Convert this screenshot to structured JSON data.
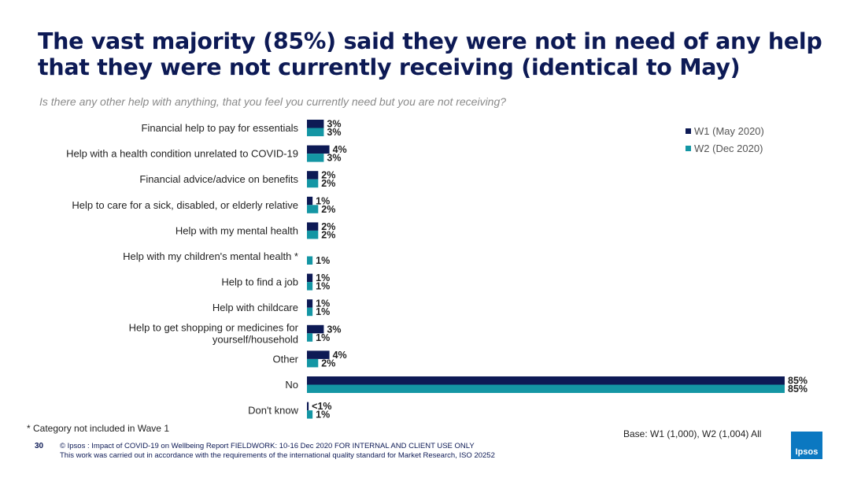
{
  "title": "The vast majority (85%) said they were not in need of any help that they were not currently receiving (identical to May)",
  "subtitle": "Is there any other help with anything, that you feel you currently need but you are not receiving?",
  "footnote": "* Category not included in Wave 1",
  "base": "Base: W1 (1,000), W2 (1,004) All",
  "footer": {
    "page_number": "30",
    "copyright_line1": "© Ipsos : Impact of COVID-19 on Wellbeing Report FIELDWORK: 10-16 Dec 2020 FOR INTERNAL AND CLIENT USE ONLY",
    "copyright_line2": "This work was carried out in accordance with the requirements of the international quality standard for Market Research, ISO 20252",
    "logo_text": "Ipsos"
  },
  "colors": {
    "w1": "#0d1a55",
    "w2": "#1496a4",
    "title": "#0d1a55",
    "logo": "#0b78c1"
  },
  "chart_data": {
    "type": "bar",
    "orientation": "horizontal",
    "categories": [
      [
        "Financial help to pay for essentials"
      ],
      [
        "Help with a health condition unrelated to COVID-19"
      ],
      [
        "Financial advice/advice on benefits"
      ],
      [
        "Help to care for a sick, disabled, or elderly relative"
      ],
      [
        "Help with my mental health"
      ],
      [
        "Help with my children's mental health *"
      ],
      [
        "Help to find a job"
      ],
      [
        "Help with childcare"
      ],
      [
        "Help to get shopping or medicines for",
        "yourself/household"
      ],
      [
        "Other"
      ],
      [
        "No"
      ],
      [
        "Don't know"
      ]
    ],
    "series": [
      {
        "name": "W1 (May 2020)",
        "values": [
          3,
          4,
          2,
          1,
          2,
          null,
          1,
          1,
          3,
          4,
          85,
          0.3
        ],
        "labels": [
          "3%",
          "4%",
          "2%",
          "1%",
          "2%",
          "",
          "1%",
          "1%",
          "3%",
          "4%",
          "85%",
          "<1%"
        ]
      },
      {
        "name": "W2 (Dec 2020)",
        "values": [
          3,
          3,
          2,
          2,
          2,
          1,
          1,
          1,
          1,
          2,
          85,
          1
        ],
        "labels": [
          "3%",
          "3%",
          "2%",
          "2%",
          "2%",
          "1%",
          "1%",
          "1%",
          "1%",
          "2%",
          "85%",
          "1%"
        ]
      }
    ],
    "xlim": [
      0,
      85
    ],
    "legend_position": "top-right",
    "grid": false
  }
}
